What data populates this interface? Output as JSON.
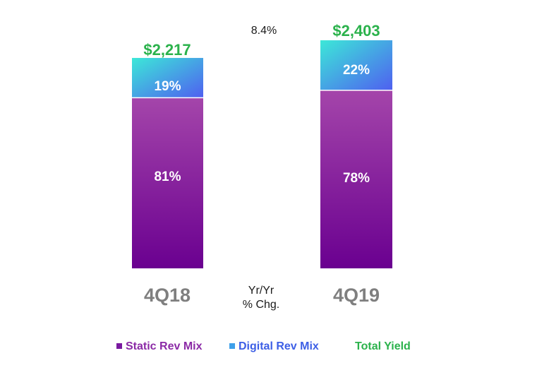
{
  "chart_data": {
    "type": "bar",
    "stacked": true,
    "categories": [
      "4Q18",
      "4Q19"
    ],
    "series": [
      {
        "name": "Static Rev Mix",
        "values": [
          81,
          78
        ],
        "labels": [
          "81%",
          "78%"
        ],
        "color": "#7a1aa0"
      },
      {
        "name": "Digital Rev Mix",
        "values": [
          19,
          22
        ],
        "labels": [
          "19%",
          "22%"
        ],
        "color": "#3d7fe6"
      }
    ],
    "totals": {
      "name": "Total Yield",
      "values": [
        2217,
        2403
      ],
      "labels": [
        "$2,217",
        "$2,403"
      ],
      "color": "#2bb24c"
    },
    "yoy_change": {
      "value": "8.4%",
      "label_line1": "Yr/Yr",
      "label_line2": "% Chg."
    },
    "legend": [
      "Static Rev Mix",
      "Digital Rev Mix",
      "Total Yield"
    ],
    "legend_position": "bottom"
  }
}
